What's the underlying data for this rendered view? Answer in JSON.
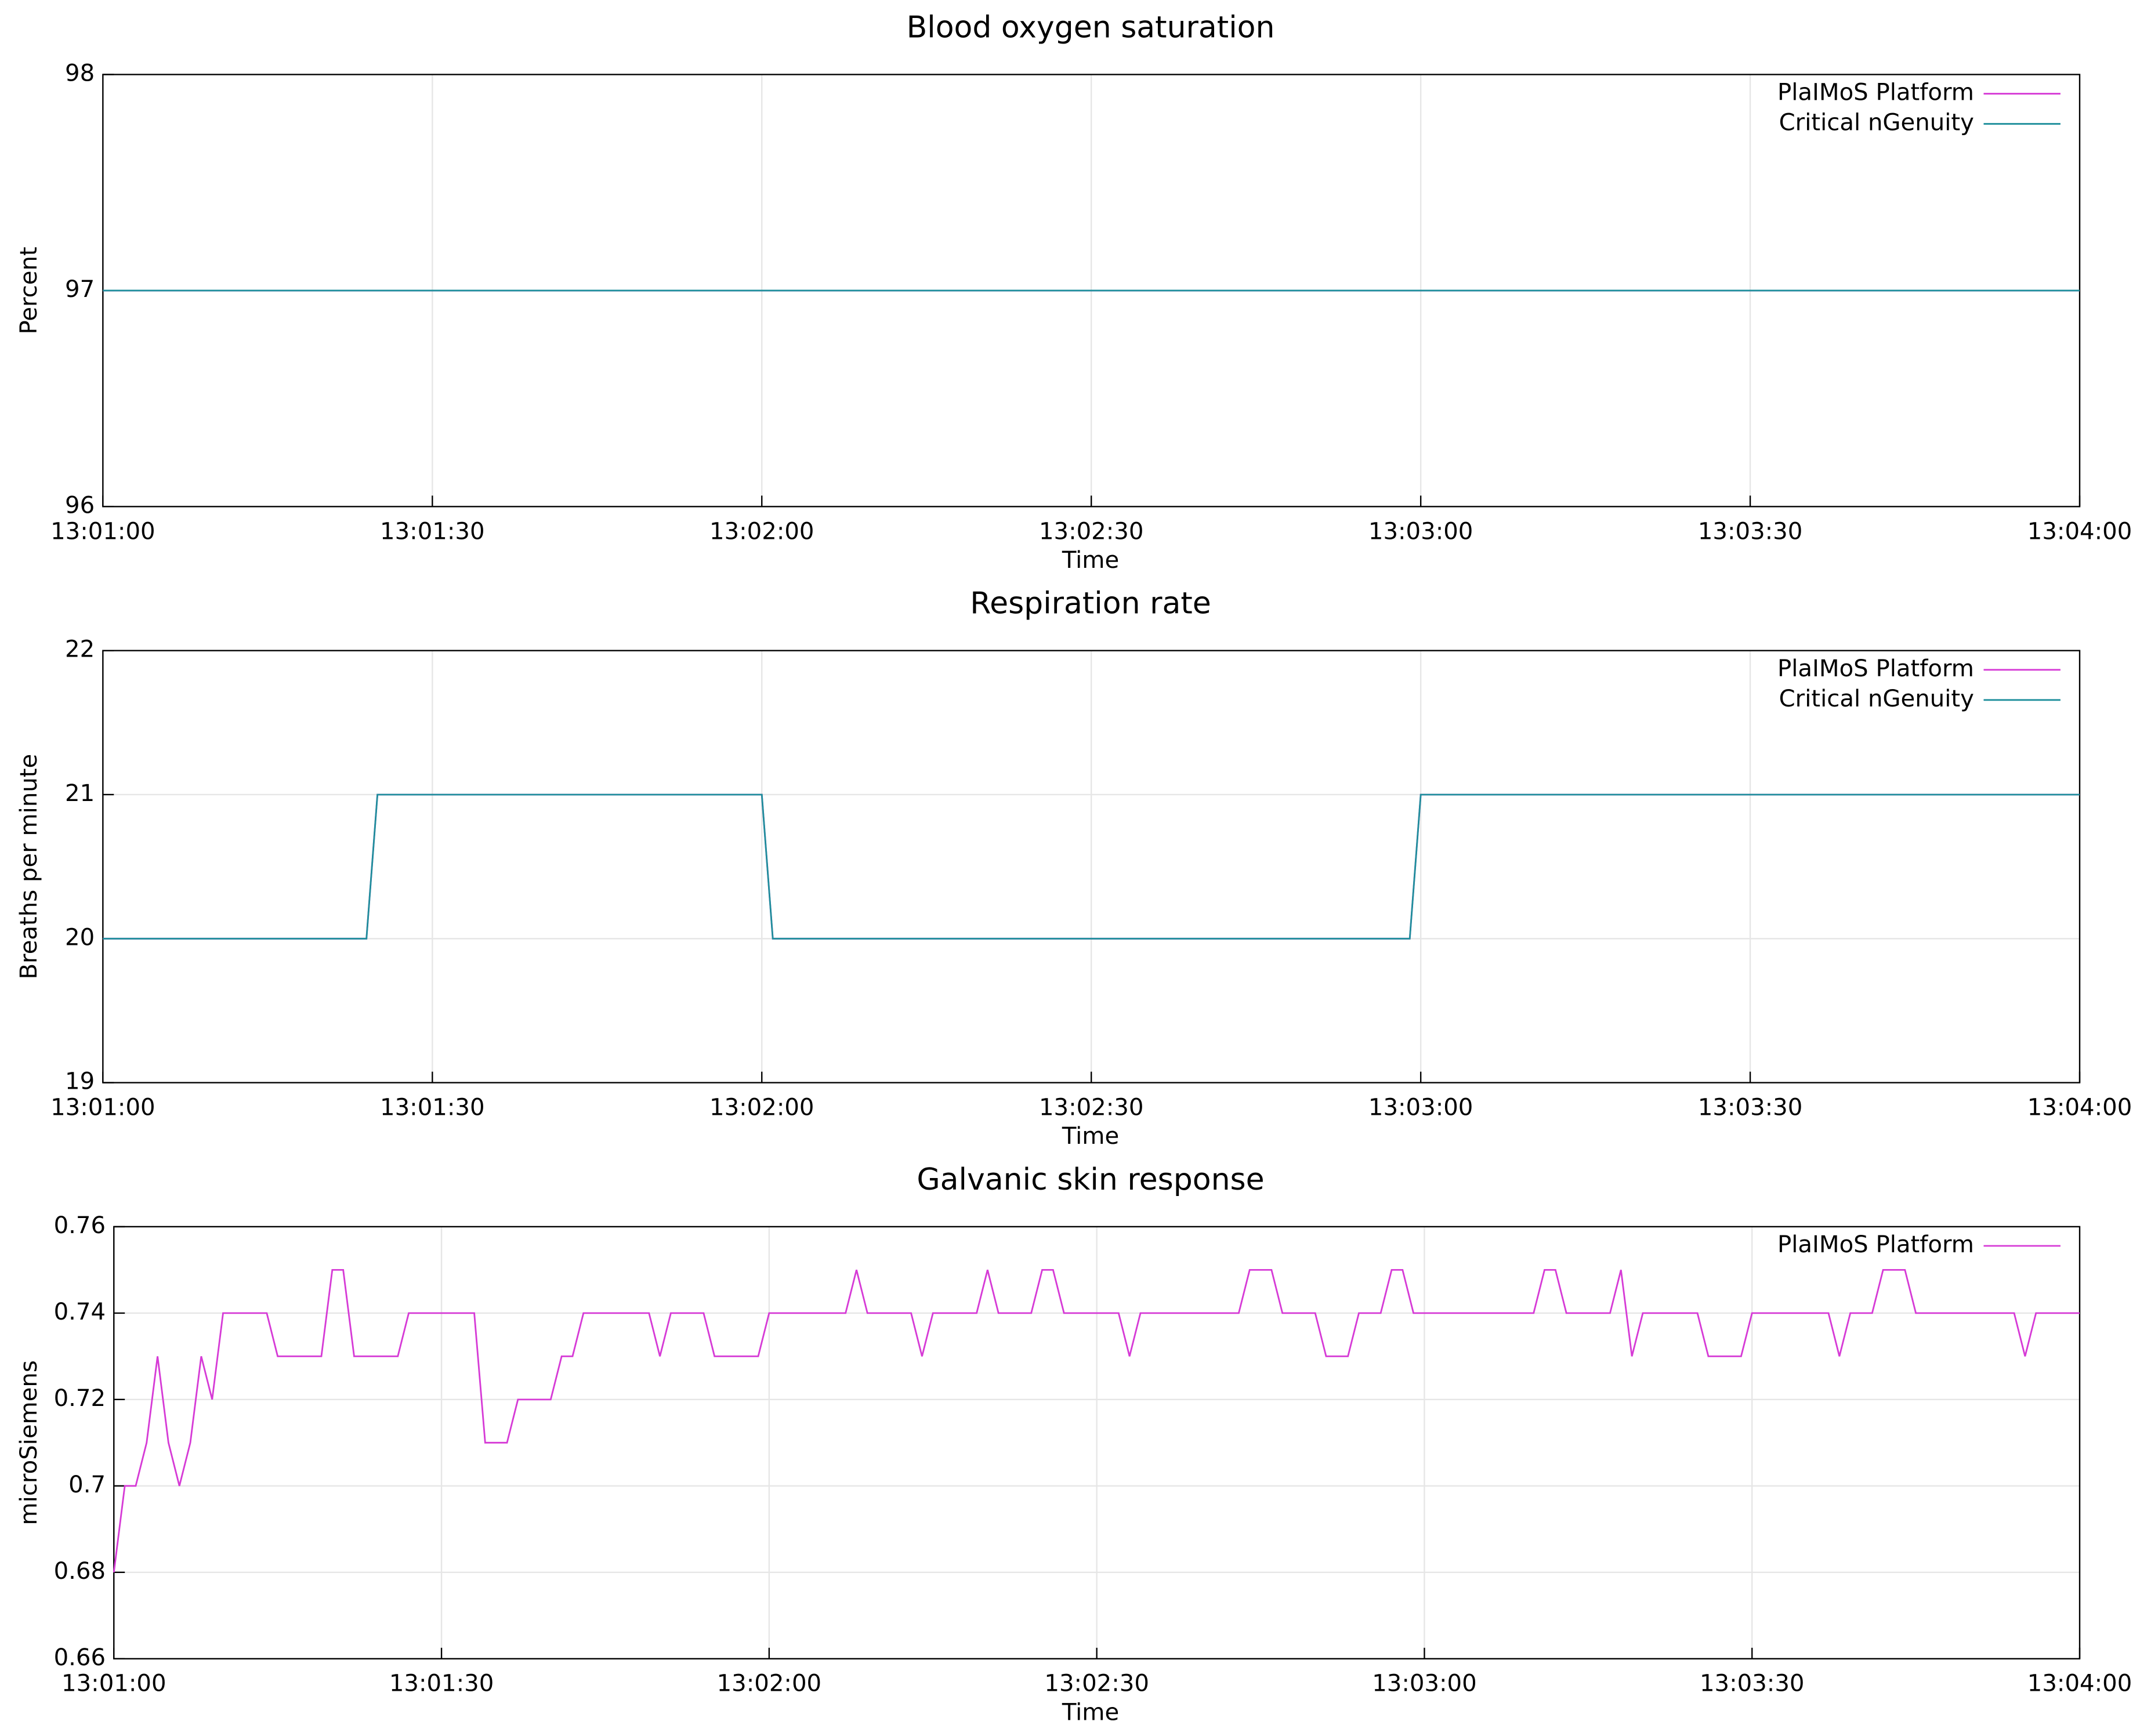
{
  "chart_data": [
    {
      "type": "line",
      "title": "Blood oxygen saturation",
      "x_label": "Time",
      "y_label": "Percent",
      "xlim": [
        "13:01:00",
        "13:04:00"
      ],
      "xticks": [
        "13:01:00",
        "13:01:30",
        "13:02:00",
        "13:02:30",
        "13:03:00",
        "13:03:30",
        "13:04:00"
      ],
      "ylim": [
        96,
        98
      ],
      "yticks": [
        96,
        97,
        98
      ],
      "grid": true,
      "legend": "upper right",
      "series": [
        {
          "name": "PlaIMoS Platform",
          "color": "#d63bd6",
          "x": [
            "13:01:00",
            "13:04:00"
          ],
          "values": [
            97,
            97
          ]
        },
        {
          "name": "Critical nGenuity",
          "color": "#1f8f9c",
          "x": [
            "13:01:00",
            "13:04:00"
          ],
          "values": [
            97,
            97
          ]
        }
      ]
    },
    {
      "type": "line",
      "title": "Respiration rate",
      "x_label": "Time",
      "y_label": "Breaths per minute",
      "xlim": [
        "13:01:00",
        "13:04:00"
      ],
      "xticks": [
        "13:01:00",
        "13:01:30",
        "13:02:00",
        "13:02:30",
        "13:03:00",
        "13:03:30",
        "13:04:00"
      ],
      "ylim": [
        19,
        22
      ],
      "yticks": [
        19,
        20,
        21,
        22
      ],
      "grid": true,
      "legend": "upper right",
      "series": [
        {
          "name": "PlaIMoS Platform",
          "color": "#d63bd6",
          "x": [
            "13:01:00",
            "13:01:24",
            "13:01:25",
            "13:02:00",
            "13:02:01",
            "13:02:59",
            "13:03:00",
            "13:04:00"
          ],
          "values": [
            20,
            20,
            21,
            21,
            20,
            20,
            21,
            21
          ]
        },
        {
          "name": "Critical nGenuity",
          "color": "#1f8f9c",
          "x": [
            "13:01:00",
            "13:01:24",
            "13:01:25",
            "13:02:00",
            "13:02:01",
            "13:02:59",
            "13:03:00",
            "13:04:00"
          ],
          "values": [
            20,
            20,
            21,
            21,
            20,
            20,
            21,
            21
          ]
        }
      ]
    },
    {
      "type": "line",
      "title": "Galvanic skin response",
      "x_label": "Time",
      "y_label": "microSiemens",
      "xlim": [
        "13:01:00",
        "13:04:00"
      ],
      "xticks": [
        "13:01:00",
        "13:01:30",
        "13:02:00",
        "13:02:30",
        "13:03:00",
        "13:03:30",
        "13:04:00"
      ],
      "ylim": [
        0.66,
        0.76
      ],
      "yticks": [
        0.66,
        0.68,
        0.7,
        0.72,
        0.74,
        0.76
      ],
      "grid": true,
      "legend": "upper right",
      "series": [
        {
          "name": "PlaIMoS Platform",
          "color": "#d63bd6",
          "x": [
            "13:01:00",
            "13:01:01",
            "13:01:02",
            "13:01:03",
            "13:01:04",
            "13:01:05",
            "13:01:06",
            "13:01:07",
            "13:01:08",
            "13:01:09",
            "13:01:10",
            "13:01:14",
            "13:01:15",
            "13:01:19",
            "13:01:20",
            "13:01:21",
            "13:01:22",
            "13:01:26",
            "13:01:27",
            "13:01:33",
            "13:01:34",
            "13:01:36",
            "13:01:37",
            "13:01:40",
            "13:01:41",
            "13:01:42",
            "13:01:43",
            "13:01:49",
            "13:01:50",
            "13:01:51",
            "13:01:54",
            "13:01:55",
            "13:01:59",
            "13:02:00",
            "13:02:07",
            "13:02:08",
            "13:02:09",
            "13:02:13",
            "13:02:14",
            "13:02:15",
            "13:02:19",
            "13:02:20",
            "13:02:21",
            "13:02:24",
            "13:02:25",
            "13:02:26",
            "13:02:27",
            "13:02:32",
            "13:02:33",
            "13:02:34",
            "13:02:43",
            "13:02:44",
            "13:02:46",
            "13:02:47",
            "13:02:50",
            "13:02:51",
            "13:02:53",
            "13:02:54",
            "13:02:56",
            "13:02:57",
            "13:02:58",
            "13:02:59",
            "13:03:10",
            "13:03:11",
            "13:03:12",
            "13:03:13",
            "13:03:17",
            "13:03:18",
            "13:03:19",
            "13:03:20",
            "13:03:25",
            "13:03:26",
            "13:03:29",
            "13:03:30",
            "13:03:37",
            "13:03:38",
            "13:03:39",
            "13:03:41",
            "13:03:42",
            "13:03:44",
            "13:03:45",
            "13:03:54",
            "13:03:55",
            "13:03:56",
            "13:04:00"
          ],
          "values": [
            0.68,
            0.7,
            0.7,
            0.71,
            0.73,
            0.71,
            0.7,
            0.71,
            0.73,
            0.72,
            0.74,
            0.74,
            0.73,
            0.73,
            0.75,
            0.75,
            0.73,
            0.73,
            0.74,
            0.74,
            0.71,
            0.71,
            0.72,
            0.72,
            0.73,
            0.73,
            0.74,
            0.74,
            0.73,
            0.74,
            0.74,
            0.73,
            0.73,
            0.74,
            0.74,
            0.75,
            0.74,
            0.74,
            0.73,
            0.74,
            0.74,
            0.75,
            0.74,
            0.74,
            0.75,
            0.75,
            0.74,
            0.74,
            0.73,
            0.74,
            0.74,
            0.75,
            0.75,
            0.74,
            0.74,
            0.73,
            0.73,
            0.74,
            0.74,
            0.75,
            0.75,
            0.74,
            0.74,
            0.75,
            0.75,
            0.74,
            0.74,
            0.75,
            0.73,
            0.74,
            0.74,
            0.73,
            0.73,
            0.74,
            0.74,
            0.73,
            0.74,
            0.74,
            0.75,
            0.75,
            0.74,
            0.74,
            0.73,
            0.74,
            0.74
          ]
        }
      ]
    }
  ]
}
